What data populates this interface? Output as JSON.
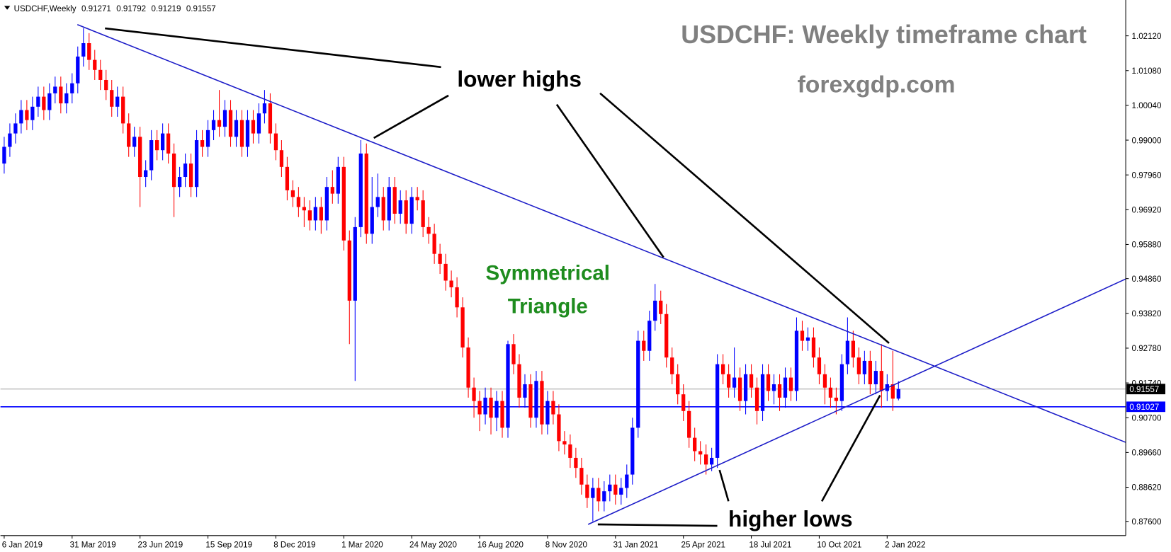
{
  "chart_data": {
    "type": "candlestick",
    "symbol": "USDCHF,Weekly",
    "title": "USDCHF: Weekly timeframe chart",
    "subtitle": "forexgdp.com",
    "annotations": {
      "lower_highs": "lower highs",
      "higher_lows": "higher lows",
      "pattern": [
        "Symmetrical",
        "Triangle"
      ]
    },
    "categories": [
      "6 Jan 2019",
      null,
      null,
      null,
      null,
      null,
      null,
      null,
      null,
      null,
      null,
      null,
      "31 Mar 2019",
      null,
      null,
      null,
      null,
      null,
      null,
      null,
      null,
      null,
      null,
      null,
      "23 Jun 2019",
      null,
      null,
      null,
      null,
      null,
      null,
      null,
      null,
      null,
      null,
      null,
      "15 Sep 2019",
      null,
      null,
      null,
      null,
      null,
      null,
      null,
      null,
      null,
      null,
      null,
      "8 Dec 2019",
      null,
      null,
      null,
      null,
      null,
      null,
      null,
      null,
      null,
      null,
      null,
      "1 Mar 2020",
      null,
      null,
      null,
      null,
      null,
      null,
      null,
      null,
      null,
      null,
      null,
      "24 May 2020",
      null,
      null,
      null,
      null,
      null,
      null,
      null,
      null,
      null,
      null,
      null,
      "16 Aug 2020",
      null,
      null,
      null,
      null,
      null,
      null,
      null,
      null,
      null,
      null,
      null,
      "8 Nov 2020",
      null,
      null,
      null,
      null,
      null,
      null,
      null,
      null,
      null,
      null,
      null,
      "31 Jan 2021",
      null,
      null,
      null,
      null,
      null,
      null,
      null,
      null,
      null,
      null,
      null,
      "25 Apr 2021",
      null,
      null,
      null,
      null,
      null,
      null,
      null,
      null,
      null,
      null,
      null,
      "18 Jul 2021",
      null,
      null,
      null,
      null,
      null,
      null,
      null,
      null,
      null,
      null,
      null,
      "10 Oct 2021",
      null,
      null,
      null,
      null,
      null,
      null,
      null,
      null,
      null,
      null,
      null,
      "2 Jan 2022",
      null,
      null
    ],
    "open": [
      0.983,
      0.988,
      0.992,
      0.995,
      0.999,
      0.996,
      1.0,
      1.003,
      0.999,
      1.004,
      1.006,
      1.001,
      1.004,
      1.007,
      1.015,
      1.019,
      1.014,
      1.011,
      1.008,
      1.005,
      1.0,
      1.003,
      0.995,
      0.988,
      0.991,
      0.979,
      0.981,
      0.99,
      0.987,
      0.992,
      0.986,
      0.976,
      0.979,
      0.983,
      0.976,
      0.99,
      0.988,
      0.993,
      0.996,
      0.994,
      0.999,
      0.991,
      0.996,
      0.988,
      0.996,
      0.992,
      0.998,
      1.001,
      0.992,
      0.987,
      0.982,
      0.975,
      0.973,
      0.97,
      0.969,
      0.966,
      0.97,
      0.966,
      0.976,
      0.974,
      0.982,
      0.96,
      0.942,
      0.964,
      0.986,
      0.962,
      0.97,
      0.973,
      0.966,
      0.976,
      0.968,
      0.972,
      0.965,
      0.973,
      0.972,
      0.964,
      0.962,
      0.956,
      0.953,
      0.948,
      0.946,
      0.94,
      0.928,
      0.916,
      0.912,
      0.908,
      0.913,
      0.907,
      0.912,
      0.904,
      0.929,
      0.923,
      0.913,
      0.917,
      0.907,
      0.918,
      0.905,
      0.912,
      0.908,
      0.9,
      0.899,
      0.895,
      0.892,
      0.887,
      0.883,
      0.886,
      0.882,
      0.885,
      0.887,
      0.884,
      0.886,
      0.89,
      0.904,
      0.93,
      0.927,
      0.936,
      0.942,
      0.938,
      0.925,
      0.92,
      0.914,
      0.909,
      0.901,
      0.897,
      0.896,
      0.893,
      0.895,
      0.923,
      0.92,
      0.916,
      0.919,
      0.912,
      0.92,
      0.916,
      0.909,
      0.92,
      0.915,
      0.917,
      0.913,
      0.919,
      0.915,
      0.933,
      0.93,
      0.931,
      0.925,
      0.92,
      0.916,
      0.913,
      0.912,
      0.923,
      0.93,
      0.925,
      0.92,
      0.924,
      0.917,
      0.921,
      0.915,
      0.917,
      0.91271
    ],
    "high": [
      0.991,
      0.995,
      0.998,
      1.002,
      1.002,
      1.003,
      1.006,
      1.006,
      1.007,
      1.009,
      1.009,
      1.007,
      1.01,
      1.018,
      1.0235,
      1.022,
      1.017,
      1.014,
      1.011,
      1.008,
      1.006,
      1.006,
      0.998,
      0.994,
      0.994,
      0.984,
      0.993,
      0.993,
      0.995,
      0.995,
      0.989,
      0.982,
      0.986,
      0.986,
      0.993,
      0.993,
      0.996,
      0.999,
      1.005,
      1.002,
      1.002,
      0.999,
      0.999,
      0.999,
      0.999,
      1.001,
      1.005,
      1.004,
      0.995,
      0.99,
      0.985,
      0.978,
      0.976,
      0.973,
      0.972,
      0.973,
      0.973,
      0.979,
      0.981,
      0.985,
      0.985,
      0.963,
      0.967,
      0.99,
      0.989,
      0.979,
      0.98,
      0.976,
      0.979,
      0.979,
      0.975,
      0.975,
      0.976,
      0.976,
      0.975,
      0.967,
      0.965,
      0.959,
      0.956,
      0.951,
      0.949,
      0.943,
      0.931,
      0.919,
      0.915,
      0.916,
      0.916,
      0.915,
      0.915,
      0.93,
      0.932,
      0.926,
      0.92,
      0.92,
      0.921,
      0.921,
      0.915,
      0.915,
      0.911,
      0.903,
      0.902,
      0.898,
      0.895,
      0.89,
      0.889,
      0.889,
      0.888,
      0.89,
      0.89,
      0.889,
      0.893,
      0.907,
      0.933,
      0.933,
      0.939,
      0.947,
      0.945,
      0.941,
      0.928,
      0.923,
      0.917,
      0.912,
      0.904,
      0.9,
      0.899,
      0.898,
      0.926,
      0.926,
      0.923,
      0.928,
      0.922,
      0.923,
      0.923,
      0.919,
      0.923,
      0.923,
      0.92,
      0.92,
      0.922,
      0.922,
      0.937,
      0.936,
      0.934,
      0.934,
      0.928,
      0.923,
      0.919,
      0.916,
      0.926,
      0.937,
      0.933,
      0.928,
      0.927,
      0.927,
      0.924,
      0.929,
      0.92,
      0.927,
      0.91792
    ],
    "low": [
      0.98,
      0.985,
      0.989,
      0.992,
      0.993,
      0.993,
      0.997,
      0.996,
      0.996,
      1.001,
      0.998,
      0.998,
      1.001,
      1.004,
      1.012,
      1.011,
      1.008,
      1.005,
      1.002,
      0.997,
      0.997,
      0.992,
      0.985,
      0.985,
      0.97,
      0.976,
      0.978,
      0.984,
      0.984,
      0.983,
      0.967,
      0.973,
      0.976,
      0.973,
      0.973,
      0.985,
      0.985,
      0.99,
      0.991,
      0.991,
      0.988,
      0.988,
      0.985,
      0.985,
      0.989,
      0.989,
      0.995,
      0.989,
      0.984,
      0.979,
      0.972,
      0.97,
      0.967,
      0.964,
      0.963,
      0.963,
      0.962,
      0.963,
      0.971,
      0.971,
      0.957,
      0.929,
      0.918,
      0.961,
      0.959,
      0.959,
      0.967,
      0.963,
      0.963,
      0.965,
      0.965,
      0.962,
      0.962,
      0.969,
      0.961,
      0.959,
      0.953,
      0.95,
      0.945,
      0.943,
      0.937,
      0.925,
      0.913,
      0.907,
      0.903,
      0.905,
      0.902,
      0.903,
      0.901,
      0.901,
      0.92,
      0.91,
      0.91,
      0.904,
      0.904,
      0.902,
      0.902,
      0.905,
      0.897,
      0.896,
      0.892,
      0.889,
      0.884,
      0.88,
      0.876,
      0.879,
      0.879,
      0.882,
      0.881,
      0.881,
      0.883,
      0.887,
      0.901,
      0.924,
      0.924,
      0.933,
      0.935,
      0.922,
      0.917,
      0.911,
      0.906,
      0.898,
      0.894,
      0.893,
      0.89,
      0.891,
      0.892,
      0.917,
      0.913,
      0.913,
      0.909,
      0.908,
      0.913,
      0.905,
      0.906,
      0.912,
      0.911,
      0.909,
      0.91,
      0.912,
      0.912,
      0.927,
      0.927,
      0.922,
      0.917,
      0.911,
      0.91,
      0.908,
      0.909,
      0.92,
      0.922,
      0.917,
      0.917,
      0.914,
      0.914,
      0.91,
      0.912,
      0.909,
      0.91219
    ],
    "close": [
      0.988,
      0.992,
      0.995,
      0.999,
      0.996,
      1.0,
      1.003,
      0.999,
      1.004,
      1.006,
      1.001,
      1.004,
      1.007,
      1.015,
      1.019,
      1.014,
      1.011,
      1.008,
      1.005,
      1.0,
      1.003,
      0.995,
      0.988,
      0.991,
      0.979,
      0.981,
      0.99,
      0.987,
      0.992,
      0.986,
      0.976,
      0.979,
      0.983,
      0.976,
      0.99,
      0.988,
      0.993,
      0.996,
      0.994,
      0.999,
      0.991,
      0.996,
      0.988,
      0.996,
      0.992,
      0.998,
      1.001,
      0.992,
      0.987,
      0.982,
      0.975,
      0.973,
      0.97,
      0.969,
      0.966,
      0.97,
      0.966,
      0.976,
      0.974,
      0.982,
      0.96,
      0.942,
      0.964,
      0.986,
      0.962,
      0.97,
      0.973,
      0.966,
      0.976,
      0.968,
      0.972,
      0.965,
      0.973,
      0.972,
      0.964,
      0.962,
      0.956,
      0.953,
      0.948,
      0.946,
      0.94,
      0.928,
      0.916,
      0.912,
      0.908,
      0.913,
      0.907,
      0.912,
      0.904,
      0.929,
      0.923,
      0.913,
      0.917,
      0.907,
      0.918,
      0.905,
      0.912,
      0.908,
      0.9,
      0.899,
      0.895,
      0.892,
      0.887,
      0.883,
      0.886,
      0.882,
      0.885,
      0.887,
      0.884,
      0.886,
      0.89,
      0.904,
      0.93,
      0.927,
      0.936,
      0.942,
      0.938,
      0.925,
      0.92,
      0.914,
      0.909,
      0.901,
      0.897,
      0.896,
      0.893,
      0.895,
      0.923,
      0.92,
      0.916,
      0.919,
      0.912,
      0.92,
      0.916,
      0.909,
      0.92,
      0.915,
      0.917,
      0.913,
      0.919,
      0.915,
      0.933,
      0.93,
      0.931,
      0.925,
      0.92,
      0.916,
      0.913,
      0.912,
      0.923,
      0.93,
      0.925,
      0.92,
      0.924,
      0.917,
      0.921,
      0.915,
      0.917,
      0.9127,
      0.91557
    ],
    "up_color": "#0000ff",
    "down_color": "#ff0000",
    "price_lines": [
      {
        "value": 0.91557,
        "color": "#a0a0a0"
      },
      {
        "value": 0.91027,
        "color": "#0000ff"
      }
    ],
    "ylim": [
      0.87175,
      1.03191
    ],
    "yticks": [
      {
        "value": 1.0212,
        "label": "1.02120"
      },
      {
        "value": 1.0108,
        "label": "1.01080"
      },
      {
        "value": 1.0004,
        "label": "1.00040"
      },
      {
        "value": 0.99,
        "label": "0.99000"
      },
      {
        "value": 0.9796,
        "label": "0.97960"
      },
      {
        "value": 0.9692,
        "label": "0.96920"
      },
      {
        "value": 0.9588,
        "label": "0.95880"
      },
      {
        "value": 0.9486,
        "label": "0.94860"
      },
      {
        "value": 0.9382,
        "label": "0.93820"
      },
      {
        "value": 0.9278,
        "label": "0.92780"
      },
      {
        "value": 0.9174,
        "label": "0.91740"
      },
      {
        "value": 0.907,
        "label": "0.90700"
      },
      {
        "value": 0.8966,
        "label": "0.89660"
      },
      {
        "value": 0.8862,
        "label": "0.88620"
      },
      {
        "value": 0.876,
        "label": "0.87600"
      }
    ],
    "grid": false
  }
}
